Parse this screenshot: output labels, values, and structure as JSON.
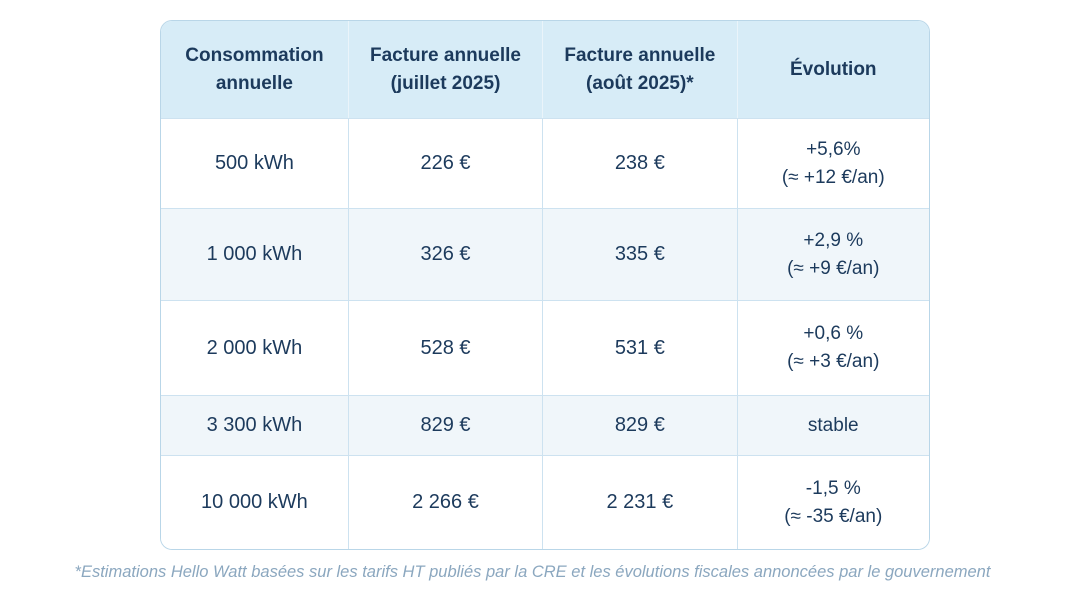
{
  "colors": {
    "header_bg": "#d7ecf7",
    "row_alt_bg": "#f0f6fa",
    "border": "#cde2f0",
    "text_navy": "#1c3a5c",
    "footnote_text": "#8ba7bf"
  },
  "table": {
    "headers": [
      "Consommation annuelle",
      "Facture annuelle (juillet 2025)",
      "Facture annuelle (août 2025)*",
      "Évolution"
    ],
    "rows": [
      {
        "consumption": "500 kWh",
        "bill_july": "226 €",
        "bill_august": "238 €",
        "evolution_lines": [
          "+5,6%",
          "(≈ +12 €/an)"
        ]
      },
      {
        "consumption": "1 000 kWh",
        "bill_july": "326 €",
        "bill_august": "335 €",
        "evolution_lines": [
          "+2,9 %",
          "(≈ +9 €/an)"
        ]
      },
      {
        "consumption": "2 000 kWh",
        "bill_july": "528 €",
        "bill_august": "531 €",
        "evolution_lines": [
          "+0,6 %",
          "(≈ +3 €/an)"
        ]
      },
      {
        "consumption": "3 300 kWh",
        "bill_july": "829 €",
        "bill_august": "829 €",
        "evolution_lines": [
          "stable"
        ]
      },
      {
        "consumption": "10 000 kWh",
        "bill_july": "2 266 €",
        "bill_august": "2 231 €",
        "evolution_lines": [
          "-1,5 %",
          "(≈ -35 €/an)"
        ]
      }
    ]
  },
  "footnote": "*Estimations Hello Watt basées sur les tarifs HT publiés par la CRE et les évolutions fiscales annoncées par le gouvernement"
}
